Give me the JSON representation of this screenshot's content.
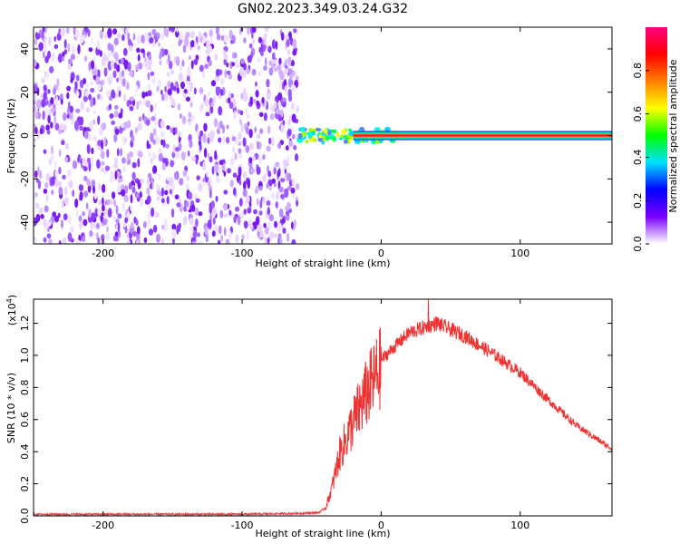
{
  "title": "GN02.2023.349.03.24.G32",
  "chart_data": [
    {
      "type": "heatmap",
      "xlabel": "Height of straight line (km)",
      "ylabel": "Frequency (Hz)",
      "xlim": [
        -250,
        166
      ],
      "ylim": [
        -50,
        50
      ],
      "x_ticks": [
        -200,
        -100,
        0,
        100
      ],
      "y_ticks": [
        -40,
        -20,
        0,
        20,
        40
      ],
      "x_tick_labels": [
        "-200",
        "-100",
        "0",
        "100"
      ],
      "y_tick_labels": [
        "-40",
        "-20",
        "0",
        "20",
        "40"
      ],
      "noise_region_x": [
        -250,
        -60
      ],
      "signal_line_frequency": 0,
      "signal_line_start_x": -20,
      "colorbar": {
        "label": "Normalized spectral amplitude",
        "range": [
          0,
          1
        ],
        "ticks": [
          0.0,
          0.2,
          0.4,
          0.6,
          0.8
        ],
        "tick_labels": [
          "0.0",
          "0.2",
          "0.4",
          "0.6",
          "0.8"
        ],
        "colors": [
          "#ffffff",
          "#7a00ff",
          "#0000ff",
          "#00e0ff",
          "#00ff00",
          "#ffff00",
          "#ff8000",
          "#ff0000",
          "#ff0080"
        ]
      }
    },
    {
      "type": "line",
      "xlabel": "Height of straight line (km)",
      "ylabel": "SNR (10 * v/v)",
      "scale_note": "(x10",
      "scale_exp": "4",
      "scale_close": ")",
      "xlim": [
        -250,
        166
      ],
      "ylim": [
        0,
        1.35
      ],
      "x_ticks": [
        -200,
        -100,
        0,
        100
      ],
      "y_ticks": [
        0.0,
        0.2,
        0.4,
        0.6,
        0.8,
        1.0,
        1.2
      ],
      "x_tick_labels": [
        "-200",
        "-100",
        "0",
        "100"
      ],
      "y_tick_labels": [
        "0.0",
        "0.2",
        "0.4",
        "0.6",
        "0.8",
        "1.0",
        "1.2"
      ],
      "series": [
        {
          "color": "#ee3333",
          "x": [
            -250,
            -200,
            -150,
            -100,
            -60,
            -45,
            -40,
            -35,
            -30,
            -20,
            -10,
            0,
            20,
            40,
            60,
            80,
            100,
            120,
            140,
            166
          ],
          "values": [
            0.01,
            0.01,
            0.01,
            0.01,
            0.015,
            0.02,
            0.05,
            0.2,
            0.4,
            0.62,
            0.82,
            0.98,
            1.15,
            1.21,
            1.13,
            1.02,
            0.9,
            0.73,
            0.57,
            0.42
          ]
        }
      ]
    }
  ]
}
